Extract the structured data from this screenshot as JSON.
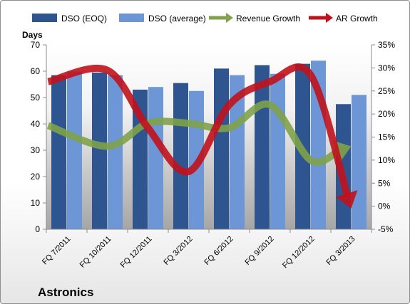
{
  "chart_data": {
    "type": "bar",
    "company_label": "Astronics",
    "y_left_title": "Days",
    "categories": [
      "FQ 7/2011",
      "FQ 10/2011",
      "FQ 12/2011",
      "FQ 3/2012",
      "FQ 6/2012",
      "FQ 9/2012",
      "FQ 12/2012",
      "FQ 3/2013"
    ],
    "y_left": {
      "min": 0,
      "max": 70,
      "step": 10,
      "ticks": [
        "0",
        "10",
        "20",
        "30",
        "40",
        "50",
        "60",
        "70"
      ]
    },
    "y_right": {
      "min": -5,
      "max": 35,
      "step": 5,
      "ticks": [
        "-5%",
        "0%",
        "5%",
        "10%",
        "15%",
        "20%",
        "25%",
        "30%",
        "35%"
      ]
    },
    "series": [
      {
        "name": "DSO (EOQ)",
        "kind": "bar",
        "axis": "left",
        "color": "#2f5590",
        "values": [
          58.5,
          59.5,
          53,
          55.5,
          61,
          62.3,
          62.8,
          47.5
        ]
      },
      {
        "name": "DSO (average)",
        "kind": "bar",
        "axis": "left",
        "color": "#6c96d6",
        "values": [
          59.8,
          58.5,
          54,
          52.5,
          58.5,
          59,
          64,
          51
        ]
      },
      {
        "name": "Revenue Growth",
        "kind": "arrow-line",
        "axis": "right",
        "color": "#7fa24a",
        "values": [
          17.5,
          13,
          18,
          18,
          17,
          22,
          10,
          13
        ]
      },
      {
        "name": "AR Growth",
        "kind": "arrow-line",
        "axis": "right",
        "color": "#c1121c",
        "values": [
          27,
          29.5,
          17,
          7.5,
          22,
          27,
          28.5,
          -0.5
        ]
      }
    ],
    "grid": false,
    "legend_position": "top"
  }
}
